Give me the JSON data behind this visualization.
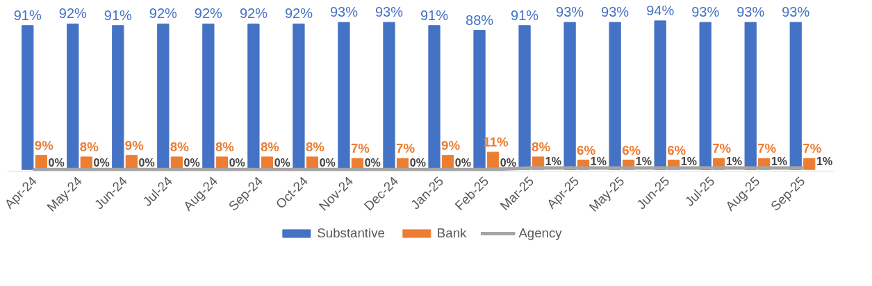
{
  "chart_data": {
    "type": "bar",
    "categories": [
      "Apr-24",
      "May-24",
      "Jun-24",
      "Jul-24",
      "Aug-24",
      "Sep-24",
      "Oct-24",
      "Nov-24",
      "Dec-24",
      "Jan-25",
      "Feb-25",
      "Mar-25",
      "Apr-25",
      "May-25",
      "Jun-25",
      "Jul-25",
      "Aug-25",
      "Sep-25"
    ],
    "series": [
      {
        "name": "Substantive",
        "color": "#4472c4",
        "values": [
          91,
          92,
          91,
          92,
          92,
          92,
          92,
          93,
          93,
          91,
          88,
          91,
          93,
          93,
          94,
          93,
          93,
          93
        ],
        "value_labels": [
          "91%",
          "92%",
          "91%",
          "92%",
          "92%",
          "92%",
          "92%",
          "93%",
          "93%",
          "91%",
          "88%",
          "91%",
          "93%",
          "93%",
          "94%",
          "93%",
          "93%",
          "93%"
        ]
      },
      {
        "name": "Bank",
        "color": "#ed7d31",
        "values": [
          9,
          8,
          9,
          8,
          8,
          8,
          8,
          7,
          7,
          9,
          11,
          8,
          6,
          6,
          6,
          7,
          7,
          7
        ],
        "value_labels": [
          "9%",
          "8%",
          "9%",
          "8%",
          "8%",
          "8%",
          "8%",
          "7%",
          "7%",
          "9%",
          "11%",
          "8%",
          "6%",
          "6%",
          "6%",
          "7%",
          "7%",
          "7%"
        ]
      },
      {
        "name": "Agency",
        "type": "line",
        "color": "#a5a5a5",
        "values": [
          0,
          0,
          0,
          0,
          0,
          0,
          0,
          0,
          0,
          0,
          0,
          1,
          1,
          1,
          1,
          1,
          1,
          1
        ],
        "value_labels": [
          "0%",
          "0%",
          "0%",
          "0%",
          "0%",
          "0%",
          "0%",
          "0%",
          "0%",
          "0%",
          "0%",
          "1%",
          "1%",
          "1%",
          "1%",
          "1%",
          "1%",
          "1%"
        ]
      }
    ],
    "legend": "bottom"
  }
}
